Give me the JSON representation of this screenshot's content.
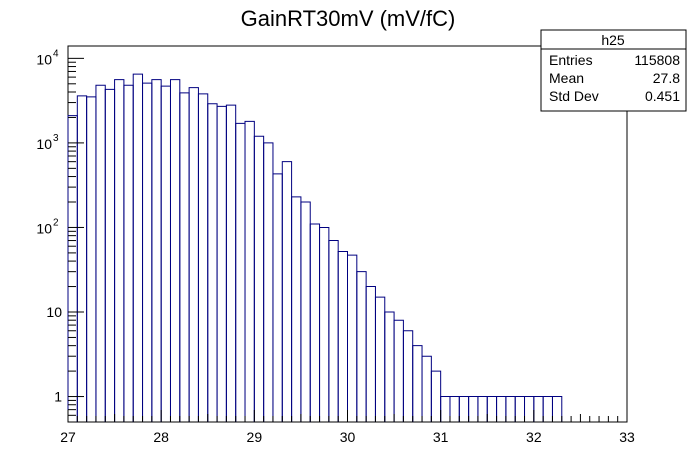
{
  "chart_data": {
    "type": "bar",
    "title": "GainRT30mV (mV/fC)",
    "xlabel": "",
    "ylabel": "",
    "xlim": [
      27,
      33
    ],
    "ylim": [
      0.5,
      14000
    ],
    "y_scale": "log",
    "grid": false,
    "histogram": {
      "bin_start": 27,
      "bin_width": 0.1,
      "values": [
        2100,
        3600,
        3500,
        4800,
        4300,
        5600,
        4800,
        6500,
        5100,
        5600,
        4700,
        5600,
        3900,
        4500,
        3800,
        2900,
        2700,
        2800,
        1700,
        1800,
        1200,
        1000,
        430,
        600,
        230,
        200,
        110,
        100,
        70,
        52,
        47,
        30,
        20,
        15,
        10,
        8,
        6,
        4,
        3,
        2,
        1,
        1,
        1,
        1,
        1,
        1,
        1,
        1,
        1,
        1,
        1,
        1,
        1
      ],
      "x_values": [
        27.05,
        27.15,
        27.25,
        27.35,
        27.45,
        27.55,
        27.65,
        27.75,
        27.85,
        27.95,
        28.05,
        28.15,
        28.25,
        28.35,
        28.45,
        28.55,
        28.65,
        28.75,
        28.85,
        28.95,
        29.05,
        29.15,
        29.25,
        29.35,
        29.45,
        29.55,
        29.65,
        29.75,
        29.85,
        29.95,
        30.05,
        30.15,
        30.25,
        30.35,
        30.45,
        30.55,
        30.65,
        30.75,
        30.85,
        30.95,
        31.05,
        31.15,
        31.25,
        31.35,
        31.45,
        31.55,
        31.65,
        31.75,
        31.85,
        31.95,
        32.05,
        32.15,
        32.25
      ]
    },
    "x_ticks": [
      "27",
      "28",
      "29",
      "30",
      "31",
      "32",
      "33"
    ],
    "y_ticks": [
      {
        "value": 1,
        "label": "1"
      },
      {
        "value": 10,
        "label": "10"
      },
      {
        "base": "10",
        "exp": "2",
        "value": 100
      },
      {
        "base": "10",
        "exp": "3",
        "value": 1000
      },
      {
        "base": "10",
        "exp": "4",
        "value": 10000
      }
    ],
    "legend": "top-right",
    "stats_box": {
      "name": "h25",
      "rows": [
        {
          "label": "Entries",
          "value": "115808"
        },
        {
          "label": "Mean",
          "value": "27.8"
        },
        {
          "label": "Std Dev",
          "value": "0.451"
        }
      ]
    }
  },
  "colors": {
    "line": "#000080",
    "frame": "#000000",
    "background": "#ffffff"
  }
}
